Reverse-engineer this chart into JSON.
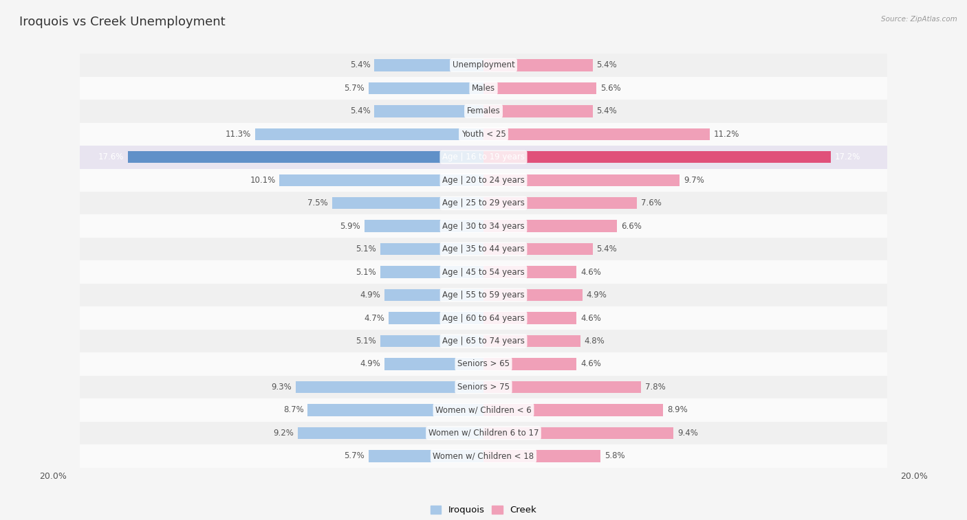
{
  "title": "Iroquois vs Creek Unemployment",
  "source": "Source: ZipAtlas.com",
  "categories": [
    "Unemployment",
    "Males",
    "Females",
    "Youth < 25",
    "Age | 16 to 19 years",
    "Age | 20 to 24 years",
    "Age | 25 to 29 years",
    "Age | 30 to 34 years",
    "Age | 35 to 44 years",
    "Age | 45 to 54 years",
    "Age | 55 to 59 years",
    "Age | 60 to 64 years",
    "Age | 65 to 74 years",
    "Seniors > 65",
    "Seniors > 75",
    "Women w/ Children < 6",
    "Women w/ Children 6 to 17",
    "Women w/ Children < 18"
  ],
  "iroquois": [
    5.4,
    5.7,
    5.4,
    11.3,
    17.6,
    10.1,
    7.5,
    5.9,
    5.1,
    5.1,
    4.9,
    4.7,
    5.1,
    4.9,
    9.3,
    8.7,
    9.2,
    5.7
  ],
  "creek": [
    5.4,
    5.6,
    5.4,
    11.2,
    17.2,
    9.7,
    7.6,
    6.6,
    5.4,
    4.6,
    4.9,
    4.6,
    4.8,
    4.6,
    7.8,
    8.9,
    9.4,
    5.8
  ],
  "iroquois_color": "#a8c8e8",
  "creek_color": "#f0a0b8",
  "iroquois_highlight": "#6090c8",
  "creek_highlight": "#e0507a",
  "row_even": "#f0f0f0",
  "row_odd": "#fafafa",
  "highlight_row_bg": "#e8e4f0",
  "background": "#f5f5f5",
  "max_val": 20.0,
  "legend_iroquois": "Iroquois",
  "legend_creek": "Creek",
  "title_fontsize": 13,
  "label_fontsize": 8.5,
  "value_fontsize": 8.5
}
